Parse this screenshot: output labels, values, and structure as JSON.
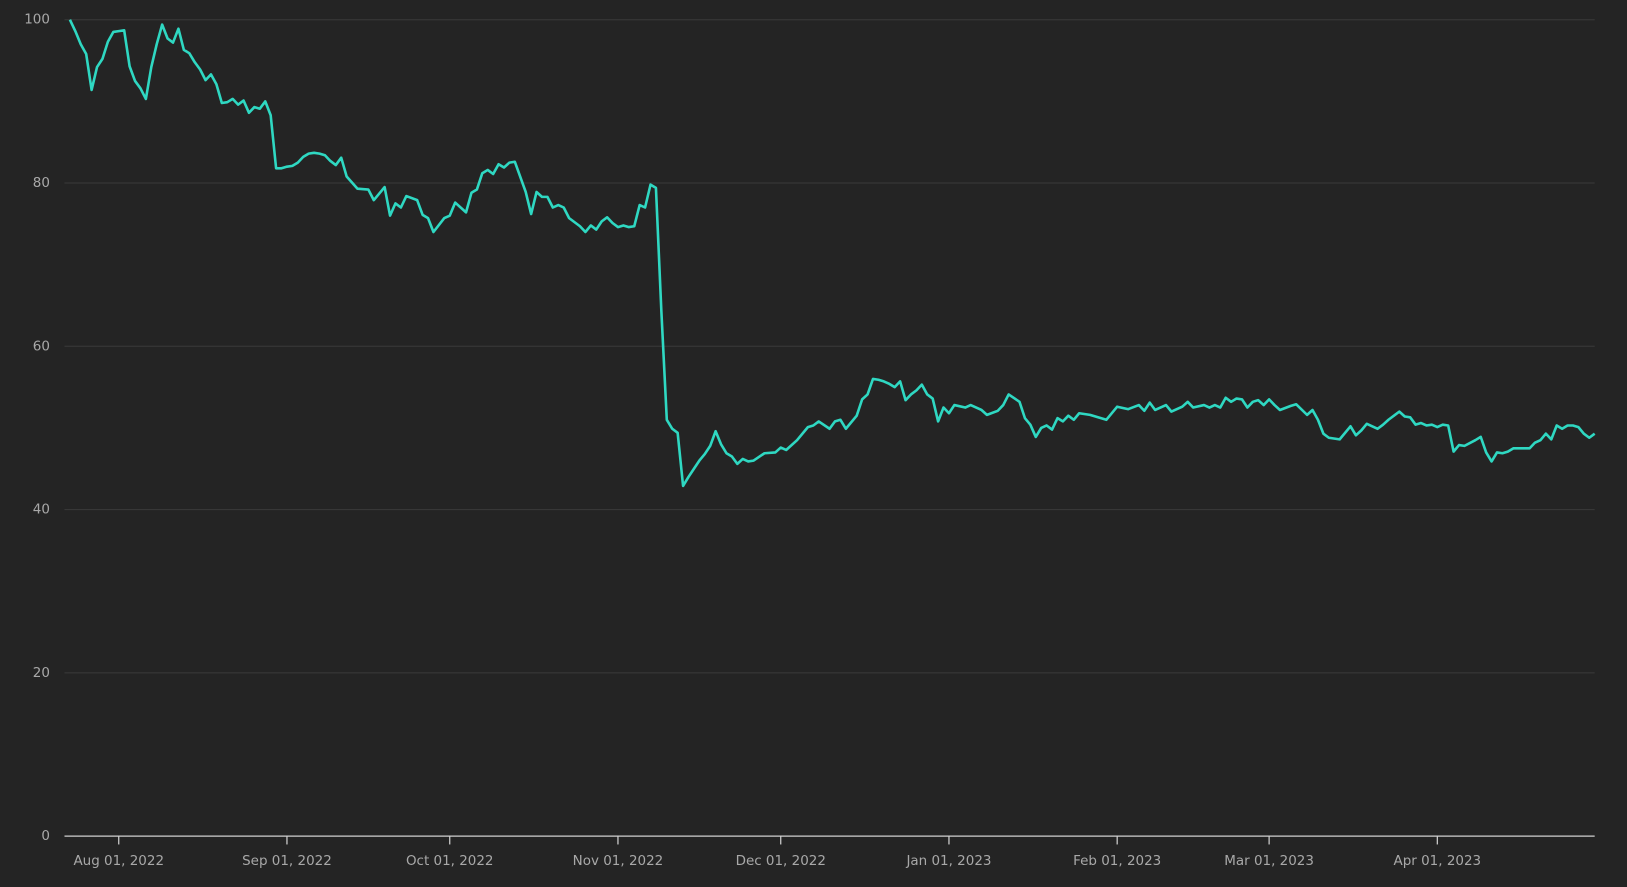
{
  "chart_data": {
    "type": "line",
    "color": "#2fd8c2",
    "grid": true,
    "x": [
      "2022-07-23",
      "2022-07-24",
      "2022-07-25",
      "2022-07-26",
      "2022-07-27",
      "2022-07-28",
      "2022-07-29",
      "2022-07-30",
      "2022-07-31",
      "2022-08-01",
      "2022-08-02",
      "2022-08-03",
      "2022-08-04",
      "2022-08-05",
      "2022-08-06",
      "2022-08-07",
      "2022-08-08",
      "2022-08-09",
      "2022-08-10",
      "2022-08-11",
      "2022-08-12",
      "2022-08-13",
      "2022-08-14",
      "2022-08-15",
      "2022-08-16",
      "2022-08-17",
      "2022-08-18",
      "2022-08-19",
      "2022-08-20",
      "2022-08-21",
      "2022-08-22",
      "2022-08-23",
      "2022-08-24",
      "2022-08-25",
      "2022-08-26",
      "2022-08-27",
      "2022-08-28",
      "2022-08-29",
      "2022-08-30",
      "2022-08-31",
      "2022-09-01",
      "2022-09-02",
      "2022-09-03",
      "2022-09-04",
      "2022-09-05",
      "2022-09-06",
      "2022-09-07",
      "2022-09-08",
      "2022-09-09",
      "2022-09-10",
      "2022-09-11",
      "2022-09-12",
      "2022-09-14",
      "2022-09-16",
      "2022-09-17",
      "2022-09-19",
      "2022-09-20",
      "2022-09-21",
      "2022-09-22",
      "2022-09-23",
      "2022-09-25",
      "2022-09-26",
      "2022-09-27",
      "2022-09-28",
      "2022-09-30",
      "2022-10-01",
      "2022-10-02",
      "2022-10-04",
      "2022-10-05",
      "2022-10-06",
      "2022-10-07",
      "2022-10-08",
      "2022-10-09",
      "2022-10-10",
      "2022-10-11",
      "2022-10-12",
      "2022-10-13",
      "2022-10-15",
      "2022-10-16",
      "2022-10-17",
      "2022-10-18",
      "2022-10-19",
      "2022-10-20",
      "2022-10-21",
      "2022-10-22",
      "2022-10-23",
      "2022-10-25",
      "2022-10-26",
      "2022-10-27",
      "2022-10-28",
      "2022-10-29",
      "2022-10-30",
      "2022-10-31",
      "2022-11-01",
      "2022-11-02",
      "2022-11-03",
      "2022-11-04",
      "2022-11-05",
      "2022-11-06",
      "2022-11-07",
      "2022-11-08",
      "2022-11-09",
      "2022-11-10",
      "2022-11-11",
      "2022-11-12",
      "2022-11-13",
      "2022-11-14",
      "2022-11-15",
      "2022-11-16",
      "2022-11-17",
      "2022-11-18",
      "2022-11-19",
      "2022-11-20",
      "2022-11-21",
      "2022-11-22",
      "2022-11-23",
      "2022-11-24",
      "2022-11-25",
      "2022-11-26",
      "2022-11-28",
      "2022-11-30",
      "2022-12-01",
      "2022-12-02",
      "2022-12-04",
      "2022-12-06",
      "2022-12-07",
      "2022-12-08",
      "2022-12-10",
      "2022-12-11",
      "2022-12-12",
      "2022-12-13",
      "2022-12-15",
      "2022-12-16",
      "2022-12-17",
      "2022-12-18",
      "2022-12-19",
      "2022-12-20",
      "2022-12-21",
      "2022-12-22",
      "2022-12-23",
      "2022-12-24",
      "2022-12-25",
      "2022-12-26",
      "2022-12-27",
      "2022-12-28",
      "2022-12-29",
      "2022-12-30",
      "2022-12-31",
      "2023-01-01",
      "2023-01-02",
      "2023-01-04",
      "2023-01-05",
      "2023-01-07",
      "2023-01-08",
      "2023-01-10",
      "2023-01-11",
      "2023-01-12",
      "2023-01-14",
      "2023-01-15",
      "2023-01-16",
      "2023-01-17",
      "2023-01-18",
      "2023-01-19",
      "2023-01-20",
      "2023-01-21",
      "2023-01-22",
      "2023-01-23",
      "2023-01-24",
      "2023-01-25",
      "2023-01-27",
      "2023-01-29",
      "2023-01-30",
      "2023-02-01",
      "2023-02-03",
      "2023-02-05",
      "2023-02-06",
      "2023-02-07",
      "2023-02-08",
      "2023-02-10",
      "2023-02-11",
      "2023-02-13",
      "2023-02-14",
      "2023-02-15",
      "2023-02-17",
      "2023-02-18",
      "2023-02-19",
      "2023-02-20",
      "2023-02-21",
      "2023-02-22",
      "2023-02-23",
      "2023-02-24",
      "2023-02-25",
      "2023-02-26",
      "2023-02-27",
      "2023-02-28",
      "2023-03-01",
      "2023-03-02",
      "2023-03-03",
      "2023-03-05",
      "2023-03-06",
      "2023-03-08",
      "2023-03-09",
      "2023-03-10",
      "2023-03-11",
      "2023-03-12",
      "2023-03-14",
      "2023-03-16",
      "2023-03-17",
      "2023-03-18",
      "2023-03-19",
      "2023-03-21",
      "2023-03-22",
      "2023-03-23",
      "2023-03-24",
      "2023-03-25",
      "2023-03-26",
      "2023-03-27",
      "2023-03-28",
      "2023-03-29",
      "2023-03-30",
      "2023-03-31",
      "2023-04-01",
      "2023-04-02",
      "2023-04-03",
      "2023-04-04",
      "2023-04-05",
      "2023-04-06",
      "2023-04-08",
      "2023-04-09",
      "2023-04-10",
      "2023-04-11",
      "2023-04-12",
      "2023-04-13",
      "2023-04-14",
      "2023-04-15",
      "2023-04-17",
      "2023-04-18",
      "2023-04-19",
      "2023-04-20",
      "2023-04-21",
      "2023-04-22",
      "2023-04-23",
      "2023-04-24",
      "2023-04-25",
      "2023-04-26",
      "2023-04-27",
      "2023-04-28",
      "2023-04-29",
      "2023-04-30"
    ],
    "values": [
      100,
      98.6,
      97,
      95.8,
      91.4,
      94.2,
      95.2,
      97.3,
      98.5,
      98.6,
      98.7,
      94.3,
      92.5,
      91.6,
      90.3,
      94.2,
      97,
      99.4,
      97.7,
      97.2,
      98.9,
      96.3,
      95.9,
      94.8,
      93.9,
      92.6,
      93.3,
      92.1,
      89.8,
      89.9,
      90.3,
      89.6,
      90.1,
      88.6,
      89.3,
      89.1,
      90,
      88.3,
      81.8,
      81.8,
      82,
      82.1,
      82.5,
      83.2,
      83.6,
      83.7,
      83.6,
      83.4,
      82.7,
      82.2,
      83.1,
      80.8,
      79.3,
      79.2,
      77.9,
      79.5,
      76,
      77.5,
      77,
      78.4,
      77.9,
      76.1,
      75.7,
      74,
      75.7,
      76,
      77.6,
      76.4,
      78.8,
      79.2,
      81.2,
      81.6,
      81.1,
      82.3,
      81.9,
      82.5,
      82.6,
      78.9,
      76.2,
      78.9,
      78.3,
      78.3,
      77,
      77.3,
      77,
      75.7,
      74.7,
      74,
      74.8,
      74.3,
      75.3,
      75.8,
      75.1,
      74.6,
      74.8,
      74.6,
      74.7,
      77.3,
      77,
      79.8,
      79.4,
      64.3,
      51,
      49.9,
      49.4,
      42.9,
      44,
      45,
      46,
      46.8,
      47.8,
      49.6,
      48,
      46.9,
      46.5,
      45.6,
      46.2,
      45.9,
      46,
      46.9,
      47,
      47.6,
      47.3,
      48.5,
      50.1,
      50.3,
      50.8,
      49.9,
      50.8,
      51,
      49.9,
      51.5,
      53.5,
      54.1,
      56,
      55.9,
      55.7,
      55.4,
      55,
      55.7,
      53.4,
      54.1,
      54.6,
      55.3,
      54.1,
      53.6,
      50.8,
      52.5,
      51.8,
      52.8,
      52.5,
      52.8,
      52.2,
      51.6,
      52.1,
      52.8,
      54.1,
      53.2,
      51.2,
      50.4,
      48.9,
      50,
      50.3,
      49.8,
      51.2,
      50.8,
      51.5,
      51,
      51.8,
      51.6,
      51.2,
      51,
      52.6,
      52.3,
      52.8,
      52.1,
      53.1,
      52.2,
      52.8,
      52,
      52.6,
      53.2,
      52.5,
      52.8,
      52.5,
      52.8,
      52.5,
      53.7,
      53.2,
      53.6,
      53.5,
      52.5,
      53.2,
      53.4,
      52.8,
      53.5,
      52.8,
      52.2,
      52.7,
      52.9,
      51.6,
      52.2,
      51,
      49.3,
      48.8,
      48.6,
      50.2,
      49.1,
      49.7,
      50.5,
      49.9,
      50.4,
      51,
      51.5,
      52,
      51.4,
      51.3,
      50.4,
      50.6,
      50.3,
      50.4,
      50.1,
      50.4,
      50.3,
      47.1,
      47.9,
      47.8,
      48.5,
      48.9,
      47,
      45.9,
      47,
      46.9,
      47.1,
      47.5,
      47.5,
      47.5,
      48.2,
      48.5,
      49.3,
      48.6,
      50.3,
      49.9,
      50.3,
      50.3,
      50.1,
      49.3,
      48.8,
      49.3
    ],
    "xlim": [
      "2022-07-22",
      "2023-04-30"
    ],
    "xticks": [
      {
        "value": "2022-08-01",
        "label": "Aug 01, 2022"
      },
      {
        "value": "2022-09-01",
        "label": "Sep 01, 2022"
      },
      {
        "value": "2022-10-01",
        "label": "Oct 01, 2022"
      },
      {
        "value": "2022-11-01",
        "label": "Nov 01, 2022"
      },
      {
        "value": "2022-12-01",
        "label": "Dec 01, 2022"
      },
      {
        "value": "2023-01-01",
        "label": "Jan 01, 2023"
      },
      {
        "value": "2023-02-01",
        "label": "Feb 01, 2023"
      },
      {
        "value": "2023-03-01",
        "label": "Mar 01, 2023"
      },
      {
        "value": "2023-04-01",
        "label": "Apr 01, 2023"
      }
    ],
    "ylim": [
      0,
      100
    ],
    "yticks": [
      0,
      20,
      40,
      60,
      80,
      100
    ]
  }
}
